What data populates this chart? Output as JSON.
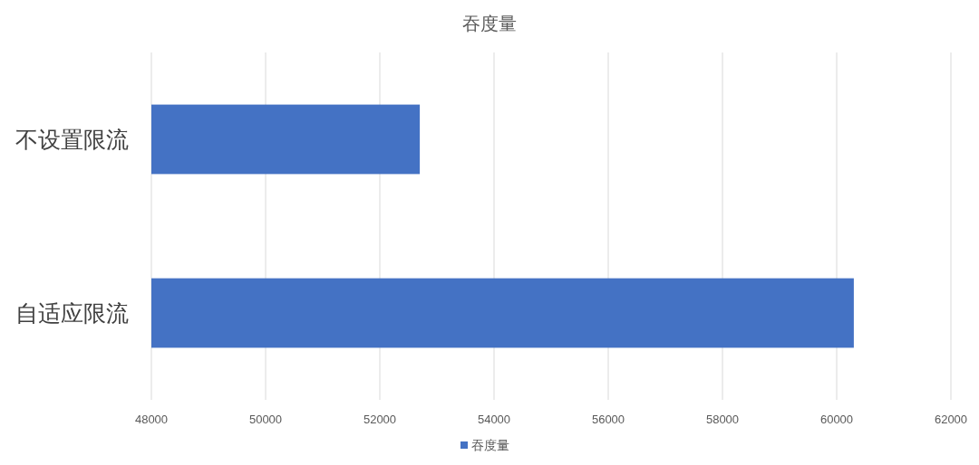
{
  "chart_data": {
    "type": "bar",
    "orientation": "horizontal",
    "title": "吞度量",
    "categories": [
      "不设置限流",
      "自适应限流"
    ],
    "series": [
      {
        "name": "吞度量",
        "color": "#4472c4",
        "values": [
          52700,
          60300
        ]
      }
    ],
    "xlim": [
      48000,
      62000
    ],
    "xticks": [
      48000,
      50000,
      52000,
      54000,
      56000,
      58000,
      60000,
      62000
    ],
    "grid": "x",
    "legend": "bottom"
  }
}
